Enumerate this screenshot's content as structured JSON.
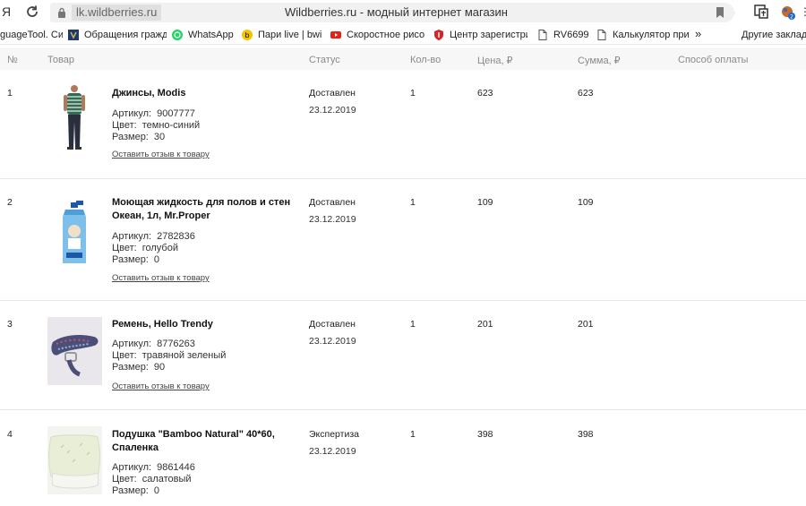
{
  "browser": {
    "ya_label": "Я",
    "url": "lk.wildberries.ru",
    "title": "Wildberries.ru - модный интернет магазин",
    "more_label": "⋮"
  },
  "bookmarks": [
    {
      "label": "guageTool. Си",
      "icon": "languagetool-icon"
    },
    {
      "label": "Обращения гражд",
      "icon": "emblem-icon"
    },
    {
      "label": "WhatsApp",
      "icon": "whatsapp-icon"
    },
    {
      "label": "Пари live | bwin",
      "icon": "bwin-icon"
    },
    {
      "label": "Скоростное рисов",
      "icon": "youtube-icon"
    },
    {
      "label": "Центр зарегистри",
      "icon": "shield-icon"
    },
    {
      "label": "RV6699",
      "icon": "page-icon"
    },
    {
      "label": "Калькулятор приб",
      "icon": "page-icon"
    },
    {
      "label": "»",
      "icon": ""
    },
    {
      "label": "Другие закладк",
      "icon": ""
    }
  ],
  "table": {
    "headers": {
      "num": "№",
      "product": "Товар",
      "status": "Статус",
      "qty": "Кол-во",
      "price": "Цена, ₽",
      "sum": "Сумма, ₽",
      "payment": "Способ оплаты"
    },
    "attr_labels": {
      "article": "Артикул:",
      "color": "Цвет:",
      "size": "Размер:"
    },
    "review_label": "Оставить отзыв к товару",
    "rows": [
      {
        "num": "1",
        "name": "Джинсы, Modis",
        "article": "9007777",
        "color": "темно-синий",
        "size": "30",
        "status": "Доставлен",
        "date": "23.12.2019",
        "qty": "1",
        "price": "623",
        "sum": "623",
        "has_review": true
      },
      {
        "num": "2",
        "name": "Моющая жидкость для полов и стен Океан, 1л, Mr.Proper",
        "article": "2782836",
        "color": "голубой",
        "size": "0",
        "status": "Доставлен",
        "date": "23.12.2019",
        "qty": "1",
        "price": "109",
        "sum": "109",
        "has_review": true
      },
      {
        "num": "3",
        "name": "Ремень, Hello Trendy",
        "article": "8776263",
        "color": "травяной зеленый",
        "size": "90",
        "status": "Доставлен",
        "date": "23.12.2019",
        "qty": "1",
        "price": "201",
        "sum": "201",
        "has_review": true
      },
      {
        "num": "4",
        "name": "Подушка \"Bamboo Natural\" 40*60, Спаленка",
        "article": "9861446",
        "color": "салатовый",
        "size": "0",
        "status": "Экспертиза",
        "date": "23.12.2019",
        "qty": "1",
        "price": "398",
        "sum": "398",
        "has_review": false
      }
    ]
  }
}
